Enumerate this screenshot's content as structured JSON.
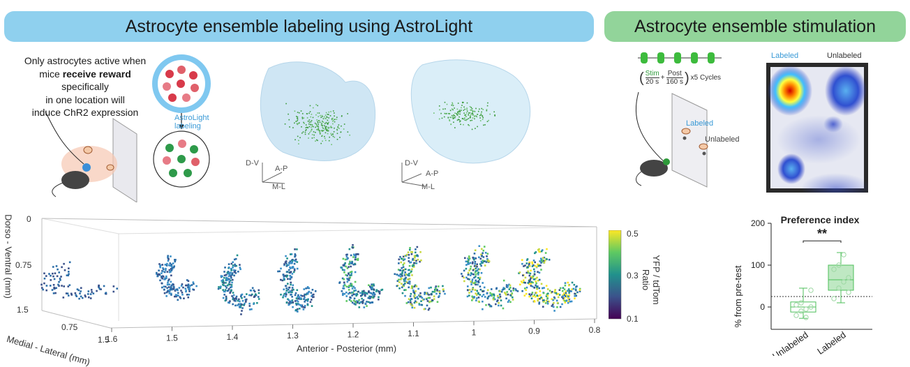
{
  "banners": {
    "left": "Astrocyte ensemble labeling using AstroLight",
    "right": "Astrocyte ensemble stimulation"
  },
  "reward": {
    "line1": "Only astrocytes active when",
    "line2_pre": "mice ",
    "line2_bold": "receive reward",
    "line2_post": " specifically",
    "line3": "in one location will",
    "line4": "induce ChR2 expression"
  },
  "astrolight_label": {
    "line1": "AstroLight",
    "line2": "labeling"
  },
  "brain_axes": {
    "dv": "D-V",
    "ap": "A-P",
    "ml": "M-L"
  },
  "stim_protocol": {
    "stim": "Stim",
    "stim_dur": "20 s",
    "post": "Post",
    "post_dur": "160 s",
    "cycles": "x5 Cycles"
  },
  "arena": {
    "labeled": "Labeled",
    "unlabeled": "Unlabeled"
  },
  "heatmap": {
    "labeled": "Labeled",
    "unlabeled": "Unlabeled"
  },
  "preference": {
    "title": "Preference index",
    "ylabel": "% from pre-test",
    "yticks": [
      "200",
      "100",
      "0"
    ],
    "categories": [
      "Unlabeled",
      "Labeled"
    ],
    "significance": "**"
  },
  "scatter3d": {
    "z_label": "Dorso - Ventral (mm)",
    "z_ticks": [
      "0",
      "0.75",
      "1.5"
    ],
    "y_label": "Medial - Lateral (mm)",
    "y_ticks": [
      "0.75",
      "1.5"
    ],
    "x_label": "Anterior - Posterior (mm)",
    "x_ticks": [
      "1.6",
      "1.5",
      "1.4",
      "1.3",
      "1.2",
      "1.1",
      "1",
      "0.9",
      "0.8"
    ]
  },
  "colorbar": {
    "label_line1": "YFP / tdTom",
    "label_line2": "Ratio",
    "ticks": [
      "0.5",
      "0.3",
      "0.1"
    ],
    "colors": [
      "#fde725",
      "#5ec962",
      "#21918c",
      "#3b528b",
      "#440154"
    ]
  },
  "chart_data": {
    "type": "box",
    "title": "Preference index",
    "ylabel": "% from pre-test",
    "categories": [
      "Unlabeled",
      "Labeled"
    ],
    "ylim": [
      -50,
      200
    ],
    "baseline": 25,
    "series": [
      {
        "name": "Unlabeled",
        "median": 0,
        "q1": -12,
        "q3": 12,
        "min": -27,
        "max": 45,
        "points": [
          -20,
          -10,
          -5,
          0,
          5,
          10,
          -25,
          40
        ]
      },
      {
        "name": "Labeled",
        "median": 65,
        "q1": 40,
        "q3": 100,
        "min": 10,
        "max": 130,
        "points": [
          20,
          45,
          60,
          70,
          90,
          100,
          125,
          35
        ]
      }
    ]
  }
}
